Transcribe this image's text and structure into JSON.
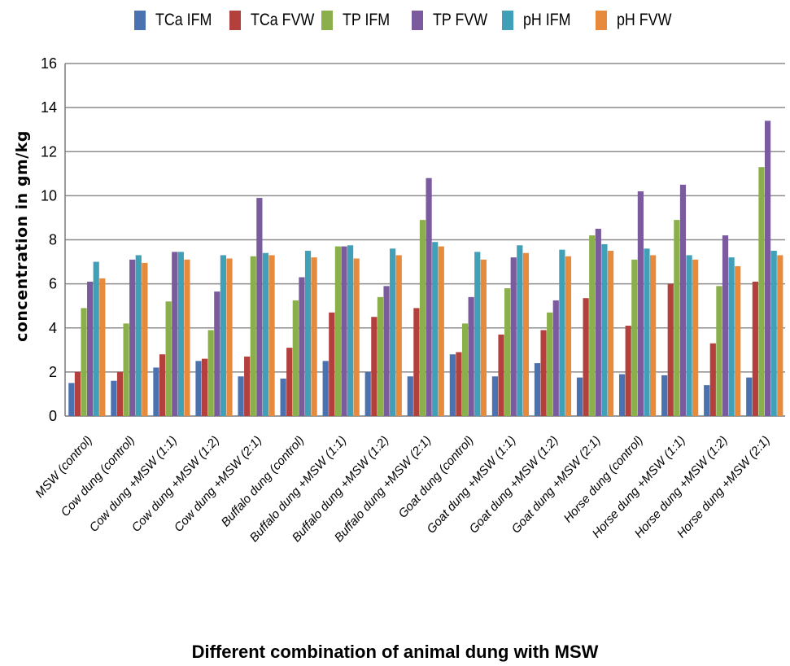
{
  "chart_data": {
    "type": "bar",
    "title": "",
    "xlabel": "Different combination of animal dung with MSW",
    "ylabel": "concentration in gm/kg",
    "ylim": [
      0,
      16
    ],
    "yticks": [
      0,
      2,
      4,
      6,
      8,
      10,
      12,
      14,
      16
    ],
    "grid": true,
    "legend_position": "top",
    "categories": [
      "MSW (control)",
      "Cow dung (control)",
      "Cow dung +MSW (1:1)",
      "Cow dung +MSW (1:2)",
      "Cow dung +MSW (2:1)",
      "Buffalo dung (control)",
      "Buffalo dung +MSW (1:1)",
      "Buffalo dung +MSW (1:2)",
      "Buffalo dung +MSW (2:1)",
      "Goat dung (control)",
      "Goat dung +MSW (1:1)",
      "Goat dung +MSW (1:2)",
      "Goat dung +MSW (2:1)",
      "Horse dung (control)",
      "Horse dung +MSW (1:1)",
      "Horse dung +MSW (1:2)",
      "Horse dung +MSW (2:1)"
    ],
    "series": [
      {
        "name": "TCa IFM",
        "color": "#4a72b0",
        "values": [
          1.5,
          1.6,
          2.2,
          2.5,
          1.8,
          1.7,
          2.5,
          2.0,
          1.8,
          2.8,
          1.8,
          2.4,
          1.75,
          1.9,
          1.85,
          1.4,
          1.75
        ]
      },
      {
        "name": "TCa FVW",
        "color": "#b3403d",
        "values": [
          2.0,
          2.0,
          2.8,
          2.6,
          2.7,
          3.1,
          4.7,
          4.5,
          4.9,
          2.9,
          3.7,
          3.9,
          5.35,
          4.1,
          6.0,
          3.3,
          6.1
        ]
      },
      {
        "name": "TP IFM",
        "color": "#8bb04b",
        "values": [
          4.9,
          4.2,
          5.2,
          3.9,
          7.25,
          5.25,
          7.7,
          5.4,
          8.9,
          4.2,
          5.8,
          4.7,
          8.2,
          7.1,
          8.9,
          5.9,
          11.3
        ]
      },
      {
        "name": "TP  FVW",
        "color": "#7a5c9e",
        "values": [
          6.1,
          7.1,
          7.45,
          5.65,
          9.9,
          6.3,
          7.7,
          5.9,
          10.8,
          5.4,
          7.2,
          5.25,
          8.5,
          10.2,
          10.5,
          8.2,
          13.4
        ]
      },
      {
        "name": "pH IFM",
        "color": "#3fa0b8",
        "values": [
          7.0,
          7.3,
          7.45,
          7.3,
          7.4,
          7.5,
          7.75,
          7.6,
          7.9,
          7.45,
          7.75,
          7.55,
          7.8,
          7.6,
          7.3,
          7.2,
          7.5
        ]
      },
      {
        "name": "pH  FVW",
        "color": "#e88a3c",
        "values": [
          6.25,
          6.95,
          7.1,
          7.15,
          7.3,
          7.2,
          7.15,
          7.3,
          7.7,
          7.1,
          7.4,
          7.25,
          7.5,
          7.3,
          7.1,
          6.8,
          7.3
        ]
      }
    ]
  }
}
